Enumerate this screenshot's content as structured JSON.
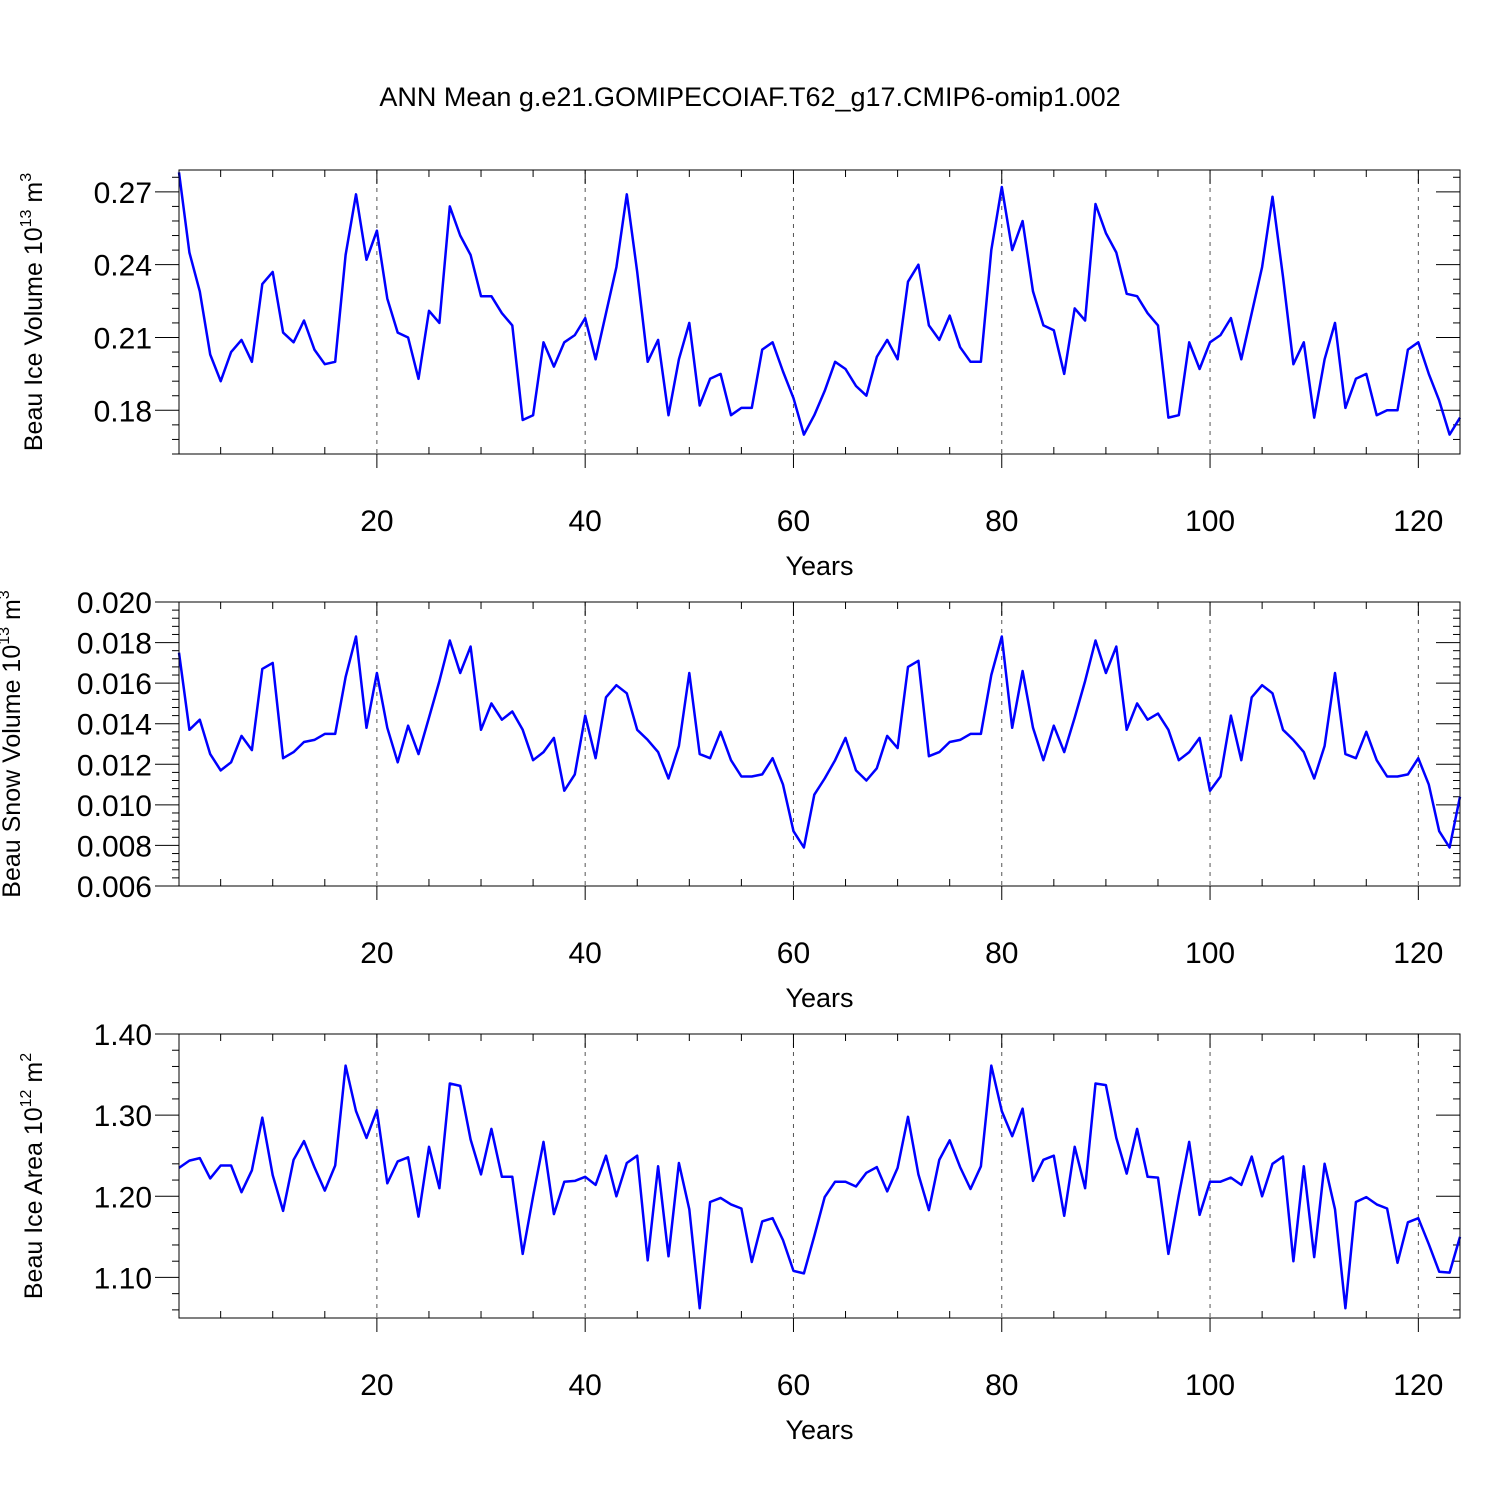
{
  "title": "ANN Mean g.e21.GOMIPECOIAF.T62_g17.CMIP6-omip1.002",
  "line_color": "#0000ff",
  "chart_data": [
    {
      "type": "line",
      "ylabel_prefix": "Beau Ice Volume 10",
      "ylabel_exp": "13",
      "ylabel_unit": " m",
      "ylabel_unit_exp": "3",
      "xlabel": "Years",
      "xlim": [
        1,
        124
      ],
      "ylim": [
        0.162,
        0.279
      ],
      "xticks": [
        20,
        40,
        60,
        80,
        100,
        120
      ],
      "xtick_labels": [
        "20",
        "40",
        "60",
        "80",
        "100",
        "120"
      ],
      "yticks": [
        0.18,
        0.21,
        0.24,
        0.27
      ],
      "ytick_labels": [
        "0.18",
        "0.21",
        "0.24",
        "0.27"
      ],
      "x_start": 1,
      "values": [
        0.278,
        0.245,
        0.229,
        0.203,
        0.192,
        0.204,
        0.209,
        0.2,
        0.232,
        0.237,
        0.212,
        0.208,
        0.217,
        0.205,
        0.199,
        0.2,
        0.244,
        0.269,
        0.242,
        0.254,
        0.226,
        0.212,
        0.21,
        0.193,
        0.221,
        0.216,
        0.264,
        0.252,
        0.244,
        0.227,
        0.227,
        0.22,
        0.215,
        0.176,
        0.178,
        0.208,
        0.198,
        0.208,
        0.211,
        0.218,
        0.201,
        0.22,
        0.239,
        0.269,
        0.237,
        0.2,
        0.209,
        0.178,
        0.201,
        0.216,
        0.182,
        0.193,
        0.195,
        0.178,
        0.181,
        0.181,
        0.205,
        0.208,
        0.196,
        0.185,
        0.17,
        0.178,
        0.188,
        0.2,
        0.197,
        0.19,
        0.186,
        0.202,
        0.209,
        0.201,
        0.233,
        0.24,
        0.215,
        0.209,
        0.219,
        0.206,
        0.2,
        0.2,
        0.246,
        0.272,
        0.246,
        0.258,
        0.229,
        0.215,
        0.213,
        0.195,
        0.222,
        0.217,
        0.265,
        0.253,
        0.245,
        0.228,
        0.227,
        0.22,
        0.215,
        0.177,
        0.178,
        0.208,
        0.197,
        0.208,
        0.211,
        0.218,
        0.201,
        0.22,
        0.239,
        0.268,
        0.235,
        0.199,
        0.208,
        0.177,
        0.201,
        0.216,
        0.181,
        0.193,
        0.195,
        0.178,
        0.18,
        0.18,
        0.205,
        0.208,
        0.195,
        0.184,
        0.17,
        0.177
      ]
    },
    {
      "type": "line",
      "ylabel_prefix": "Beau Snow Volume 10",
      "ylabel_exp": "13",
      "ylabel_unit": " m",
      "ylabel_unit_exp": "3",
      "xlabel": "Years",
      "xlim": [
        1,
        124
      ],
      "ylim": [
        0.006,
        0.02
      ],
      "xticks": [
        20,
        40,
        60,
        80,
        100,
        120
      ],
      "xtick_labels": [
        "20",
        "40",
        "60",
        "80",
        "100",
        "120"
      ],
      "yticks": [
        0.006,
        0.008,
        0.01,
        0.012,
        0.014,
        0.016,
        0.018,
        0.02
      ],
      "ytick_labels": [
        "0.006",
        "0.008",
        "0.010",
        "0.012",
        "0.014",
        "0.016",
        "0.018",
        "0.020"
      ],
      "x_start": 1,
      "values": [
        0.0175,
        0.0137,
        0.0142,
        0.0125,
        0.0117,
        0.0121,
        0.0134,
        0.0127,
        0.0167,
        0.017,
        0.0123,
        0.0126,
        0.0131,
        0.0132,
        0.0135,
        0.0135,
        0.0163,
        0.0183,
        0.0138,
        0.0165,
        0.0138,
        0.0121,
        0.0139,
        0.0125,
        0.0143,
        0.0161,
        0.0181,
        0.0165,
        0.0178,
        0.0137,
        0.015,
        0.0142,
        0.0146,
        0.0137,
        0.0122,
        0.0126,
        0.0133,
        0.0107,
        0.0115,
        0.0144,
        0.0123,
        0.0153,
        0.0159,
        0.0155,
        0.0137,
        0.0132,
        0.0126,
        0.0113,
        0.0129,
        0.0165,
        0.0125,
        0.0123,
        0.0136,
        0.0122,
        0.0114,
        0.0114,
        0.0115,
        0.0123,
        0.011,
        0.0087,
        0.0079,
        0.0105,
        0.0113,
        0.0122,
        0.0133,
        0.0117,
        0.0112,
        0.0118,
        0.0134,
        0.0128,
        0.0168,
        0.0171,
        0.0124,
        0.0126,
        0.0131,
        0.0132,
        0.0135,
        0.0135,
        0.0164,
        0.0183,
        0.0138,
        0.0166,
        0.0138,
        0.0122,
        0.0139,
        0.0126,
        0.0143,
        0.0161,
        0.0181,
        0.0165,
        0.0178,
        0.0137,
        0.015,
        0.0142,
        0.0145,
        0.0137,
        0.0122,
        0.0126,
        0.0133,
        0.0107,
        0.0114,
        0.0144,
        0.0122,
        0.0153,
        0.0159,
        0.0155,
        0.0137,
        0.0132,
        0.0126,
        0.0113,
        0.0129,
        0.0165,
        0.0125,
        0.0123,
        0.0136,
        0.0122,
        0.0114,
        0.0114,
        0.0115,
        0.0123,
        0.011,
        0.0087,
        0.0079,
        0.0104
      ]
    },
    {
      "type": "line",
      "ylabel_prefix": "Beau Ice Area 10",
      "ylabel_exp": "12",
      "ylabel_unit": " m",
      "ylabel_unit_exp": "2",
      "xlabel": "Years",
      "xlim": [
        1,
        124
      ],
      "ylim": [
        1.05,
        1.4
      ],
      "xticks": [
        20,
        40,
        60,
        80,
        100,
        120
      ],
      "xtick_labels": [
        "20",
        "40",
        "60",
        "80",
        "100",
        "120"
      ],
      "yticks": [
        1.1,
        1.2,
        1.3,
        1.4
      ],
      "ytick_labels": [
        "1.10",
        "1.20",
        "1.30",
        "1.40"
      ],
      "x_start": 1,
      "values": [
        1.235,
        1.244,
        1.247,
        1.222,
        1.238,
        1.238,
        1.205,
        1.232,
        1.297,
        1.226,
        1.182,
        1.245,
        1.268,
        1.236,
        1.207,
        1.238,
        1.361,
        1.305,
        1.272,
        1.306,
        1.216,
        1.243,
        1.248,
        1.175,
        1.261,
        1.21,
        1.339,
        1.336,
        1.27,
        1.227,
        1.283,
        1.224,
        1.224,
        1.129,
        1.2,
        1.267,
        1.178,
        1.218,
        1.219,
        1.224,
        1.214,
        1.25,
        1.2,
        1.241,
        1.25,
        1.121,
        1.237,
        1.126,
        1.241,
        1.184,
        1.062,
        1.193,
        1.198,
        1.19,
        1.185,
        1.119,
        1.169,
        1.173,
        1.146,
        1.108,
        1.105,
        1.151,
        1.199,
        1.218,
        1.218,
        1.212,
        1.229,
        1.236,
        1.206,
        1.235,
        1.298,
        1.227,
        1.183,
        1.245,
        1.269,
        1.236,
        1.209,
        1.237,
        1.361,
        1.305,
        1.274,
        1.308,
        1.219,
        1.245,
        1.25,
        1.176,
        1.261,
        1.21,
        1.339,
        1.337,
        1.272,
        1.228,
        1.283,
        1.224,
        1.223,
        1.129,
        1.201,
        1.267,
        1.177,
        1.218,
        1.218,
        1.223,
        1.214,
        1.249,
        1.2,
        1.24,
        1.249,
        1.12,
        1.237,
        1.125,
        1.24,
        1.184,
        1.062,
        1.193,
        1.199,
        1.19,
        1.185,
        1.118,
        1.168,
        1.173,
        1.141,
        1.107,
        1.106,
        1.15
      ]
    }
  ]
}
